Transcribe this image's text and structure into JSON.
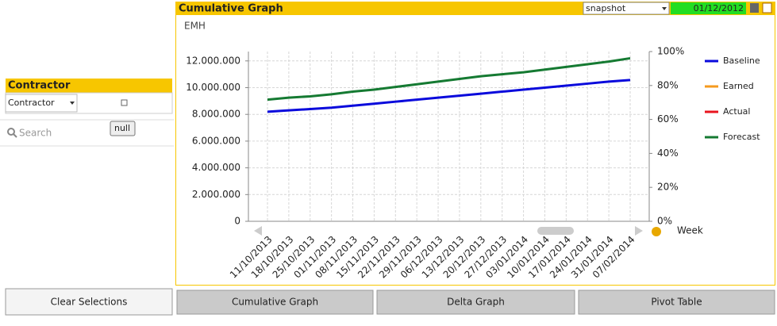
{
  "window": {
    "panel_title": "Cumulative Graph",
    "dropdown": "snapshot",
    "date": "01/12/2012",
    "listbox_title": "Contractor",
    "listbox_field": "Contractor",
    "tooltip": "null",
    "search_placeholder": "Search",
    "buttons": [
      "Clear Selections",
      "Cumulative Graph",
      "Delta Graph",
      "Pivot Table"
    ]
  },
  "chart_data": {
    "type": "line",
    "y_label": "EMH",
    "x_label": "Week",
    "categories": [
      "11/10/2013",
      "18/10/2013",
      "25/10/2013",
      "01/11/2013",
      "08/11/2013",
      "15/11/2013",
      "22/11/2013",
      "29/11/2013",
      "06/12/2013",
      "13/12/2013",
      "20/12/2013",
      "27/12/2013",
      "03/01/2014",
      "10/01/2014",
      "17/01/2014",
      "24/01/2014",
      "31/01/2014",
      "07/02/2014"
    ],
    "series": [
      {
        "name": "Baseline",
        "color": "#0a0adc",
        "values": [
          8200000,
          8300000,
          8400000,
          8500000,
          8650000,
          8800000,
          8950000,
          9100000,
          9250000,
          9400000,
          9550000,
          9700000,
          9850000,
          10000000,
          10150000,
          10300000,
          10450000,
          10570000
        ]
      },
      {
        "name": "Earned",
        "color": "#f59a1e",
        "values": [
          null,
          null,
          null,
          null,
          null,
          null,
          null,
          null,
          null,
          null,
          null,
          null,
          null,
          null,
          null,
          null,
          null,
          null
        ]
      },
      {
        "name": "Actual",
        "color": "#e8141e",
        "values": [
          null,
          null,
          null,
          null,
          null,
          null,
          null,
          null,
          null,
          null,
          null,
          null,
          null,
          null,
          null,
          null,
          null,
          null
        ]
      },
      {
        "name": "Forecast",
        "color": "#157a32",
        "values": [
          9100000,
          9250000,
          9350000,
          9500000,
          9700000,
          9850000,
          10050000,
          10250000,
          10450000,
          10650000,
          10850000,
          11000000,
          11150000,
          11350000,
          11550000,
          11750000,
          11950000,
          12200000
        ]
      }
    ],
    "ylim": [
      0,
      12700000
    ],
    "yticks": [
      0,
      {
        "value": 2000000,
        "label": "2.000.000"
      },
      {
        "value": 4000000,
        "label": "4.000.000"
      },
      {
        "value": 6000000,
        "label": "6.000.000"
      },
      {
        "value": 8000000,
        "label": "8.000.000"
      },
      {
        "value": 10000000,
        "label": "10.000.000"
      },
      {
        "value": 12000000,
        "label": "12.000.000"
      }
    ],
    "y2lim": [
      0,
      100
    ],
    "y2ticks": [
      {
        "value": 0,
        "label": "0%"
      },
      {
        "value": 20,
        "label": "20%"
      },
      {
        "value": 40,
        "label": "40%"
      },
      {
        "value": 60,
        "label": "60%"
      },
      {
        "value": 80,
        "label": "80%"
      },
      {
        "value": 100,
        "label": "100%"
      }
    ],
    "grid": true
  }
}
